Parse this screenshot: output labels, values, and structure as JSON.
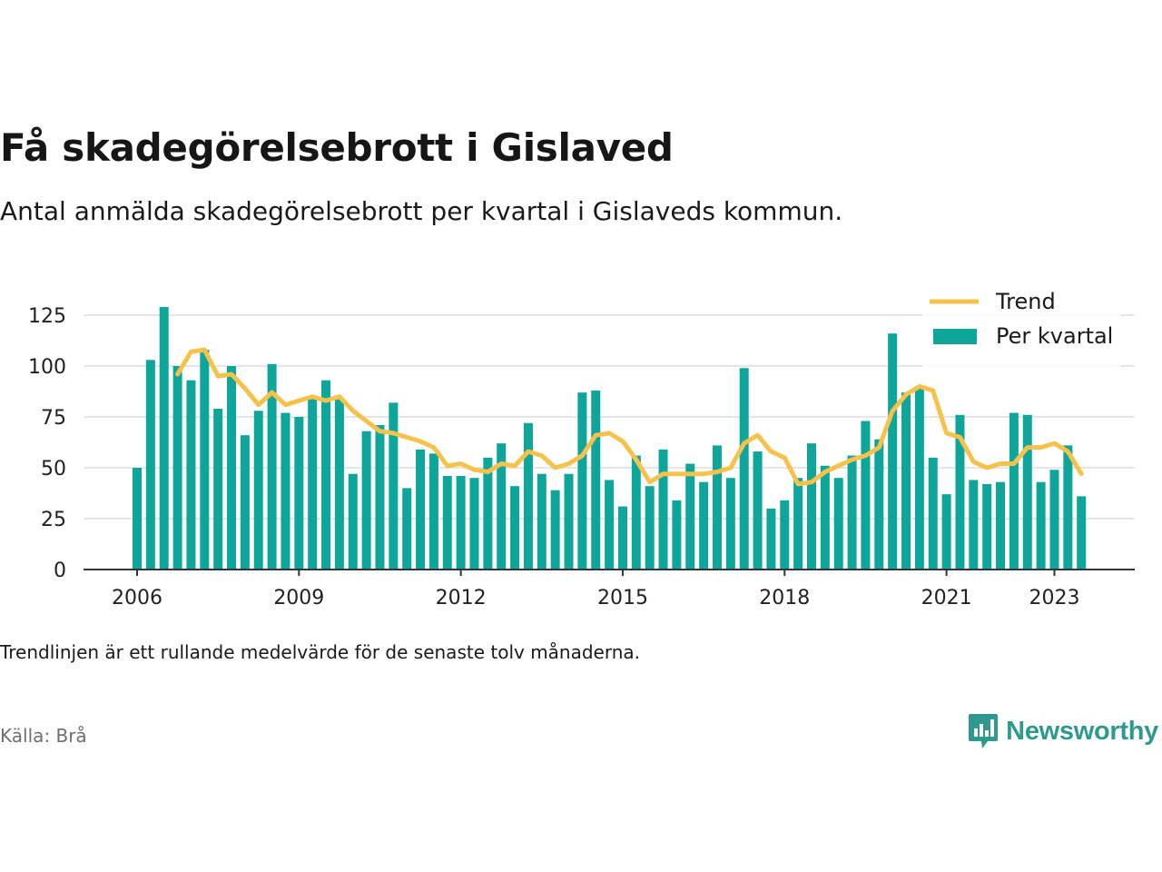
{
  "header": {
    "title": "Få skadegörelsebrott i Gislaved",
    "subtitle": "Antal anmälda skadegörelsebrott per kvartal i Gislaveds kommun."
  },
  "footer": {
    "note": "Trendlinjen är ett rullande medelvärde för de senaste tolv månaderna.",
    "source": "Källa: Brå",
    "brand": "Newsworthy",
    "brand_icon": "newsworthy-logo-icon"
  },
  "colors": {
    "bars": "#0ea59a",
    "trend": "#f5c24c",
    "grid": "#dddddd",
    "axis": "#333333",
    "brand": "#2e9a8e"
  },
  "chart_data": {
    "type": "bar",
    "x_start": "2006 Q1",
    "categories": [
      "2006 Q1",
      "2006 Q2",
      "2006 Q3",
      "2006 Q4",
      "2007 Q1",
      "2007 Q2",
      "2007 Q3",
      "2007 Q4",
      "2008 Q1",
      "2008 Q2",
      "2008 Q3",
      "2008 Q4",
      "2009 Q1",
      "2009 Q2",
      "2009 Q3",
      "2009 Q4",
      "2010 Q1",
      "2010 Q2",
      "2010 Q3",
      "2010 Q4",
      "2011 Q1",
      "2011 Q2",
      "2011 Q3",
      "2011 Q4",
      "2012 Q1",
      "2012 Q2",
      "2012 Q3",
      "2012 Q4",
      "2013 Q1",
      "2013 Q2",
      "2013 Q3",
      "2013 Q4",
      "2014 Q1",
      "2014 Q2",
      "2014 Q3",
      "2014 Q4",
      "2015 Q1",
      "2015 Q2",
      "2015 Q3",
      "2015 Q4",
      "2016 Q1",
      "2016 Q2",
      "2016 Q3",
      "2016 Q4",
      "2017 Q1",
      "2017 Q2",
      "2017 Q3",
      "2017 Q4",
      "2018 Q1",
      "2018 Q2",
      "2018 Q3",
      "2018 Q4",
      "2019 Q1",
      "2019 Q2",
      "2019 Q3",
      "2019 Q4",
      "2020 Q1",
      "2020 Q2",
      "2020 Q3",
      "2020 Q4",
      "2021 Q1",
      "2021 Q2",
      "2021 Q3",
      "2021 Q4",
      "2022 Q1",
      "2022 Q2",
      "2022 Q3",
      "2022 Q4",
      "2023 Q1",
      "2023 Q2",
      "2023 Q3"
    ],
    "series": [
      {
        "name": "Per kvartal",
        "type": "bar",
        "values": [
          50,
          103,
          129,
          100,
          93,
          108,
          79,
          100,
          66,
          78,
          101,
          77,
          75,
          84,
          93,
          84,
          47,
          68,
          71,
          82,
          40,
          59,
          57,
          46,
          46,
          45,
          55,
          62,
          41,
          72,
          47,
          39,
          47,
          87,
          88,
          44,
          31,
          56,
          41,
          59,
          34,
          52,
          43,
          61,
          45,
          99,
          58,
          30,
          34,
          45,
          62,
          51,
          45,
          56,
          73,
          64,
          116,
          87,
          90,
          55,
          37,
          76,
          44,
          42,
          43,
          77,
          76,
          43,
          49,
          61,
          36
        ]
      },
      {
        "name": "Trend",
        "type": "line",
        "values": [
          null,
          null,
          null,
          96,
          107,
          108,
          95,
          96,
          89,
          81,
          87,
          81,
          83,
          85,
          83,
          85,
          78,
          73,
          68,
          67,
          65,
          63,
          60,
          51,
          52,
          49,
          48,
          52,
          51,
          58,
          56,
          50,
          52,
          56,
          66,
          67,
          63,
          54,
          43,
          47,
          47,
          47,
          47,
          48,
          50,
          62,
          66,
          58,
          55,
          42,
          43,
          48,
          51,
          54,
          56,
          60,
          78,
          86,
          90,
          88,
          67,
          65,
          53,
          50,
          52,
          52,
          60,
          60,
          62,
          58,
          47
        ]
      }
    ],
    "x_ticks": [
      "2006",
      "2009",
      "2012",
      "2015",
      "2018",
      "2021",
      "2023"
    ],
    "x_tick_positions": [
      "2006 Q1",
      "2009 Q1",
      "2012 Q1",
      "2015 Q1",
      "2018 Q1",
      "2021 Q1",
      "2023 Q1"
    ],
    "y_ticks": [
      "0",
      "25",
      "50",
      "75",
      "100",
      "125"
    ],
    "ylim": [
      0,
      140
    ],
    "grid": true,
    "legend_placement": "top-right",
    "legend": [
      "Trend",
      "Per kvartal"
    ]
  }
}
